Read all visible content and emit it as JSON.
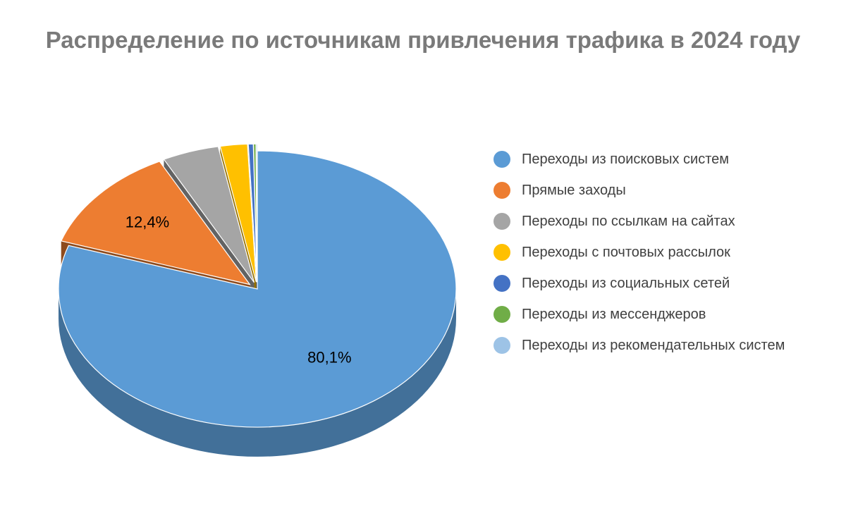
{
  "chart_data": {
    "type": "pie",
    "title": "Распределение по источникам привлечения трафика в 2024 году",
    "legend_position": "right",
    "style": "3d-exploded",
    "series": [
      {
        "name": "Переходы из поисковых систем",
        "value": 80.1,
        "label": "80,1%",
        "color": "#5B9BD5"
      },
      {
        "name": "Прямые заходы",
        "value": 12.4,
        "label": "12,4%",
        "color": "#ED7D31"
      },
      {
        "name": "Переходы по ссылкам на сайтах",
        "value": 4.6,
        "label": "",
        "color": "#A5A5A5"
      },
      {
        "name": "Переходы с почтовых рассылок",
        "value": 2.2,
        "label": "",
        "color": "#FFC000"
      },
      {
        "name": "Переходы из социальных сетей",
        "value": 0.4,
        "label": "",
        "color": "#4472C4"
      },
      {
        "name": "Переходы из мессенджеров",
        "value": 0.2,
        "label": "",
        "color": "#70AD47"
      },
      {
        "name": "Переходы из рекомендательных систем",
        "value": 0.1,
        "label": "",
        "color": "#9DC3E6"
      }
    ]
  }
}
